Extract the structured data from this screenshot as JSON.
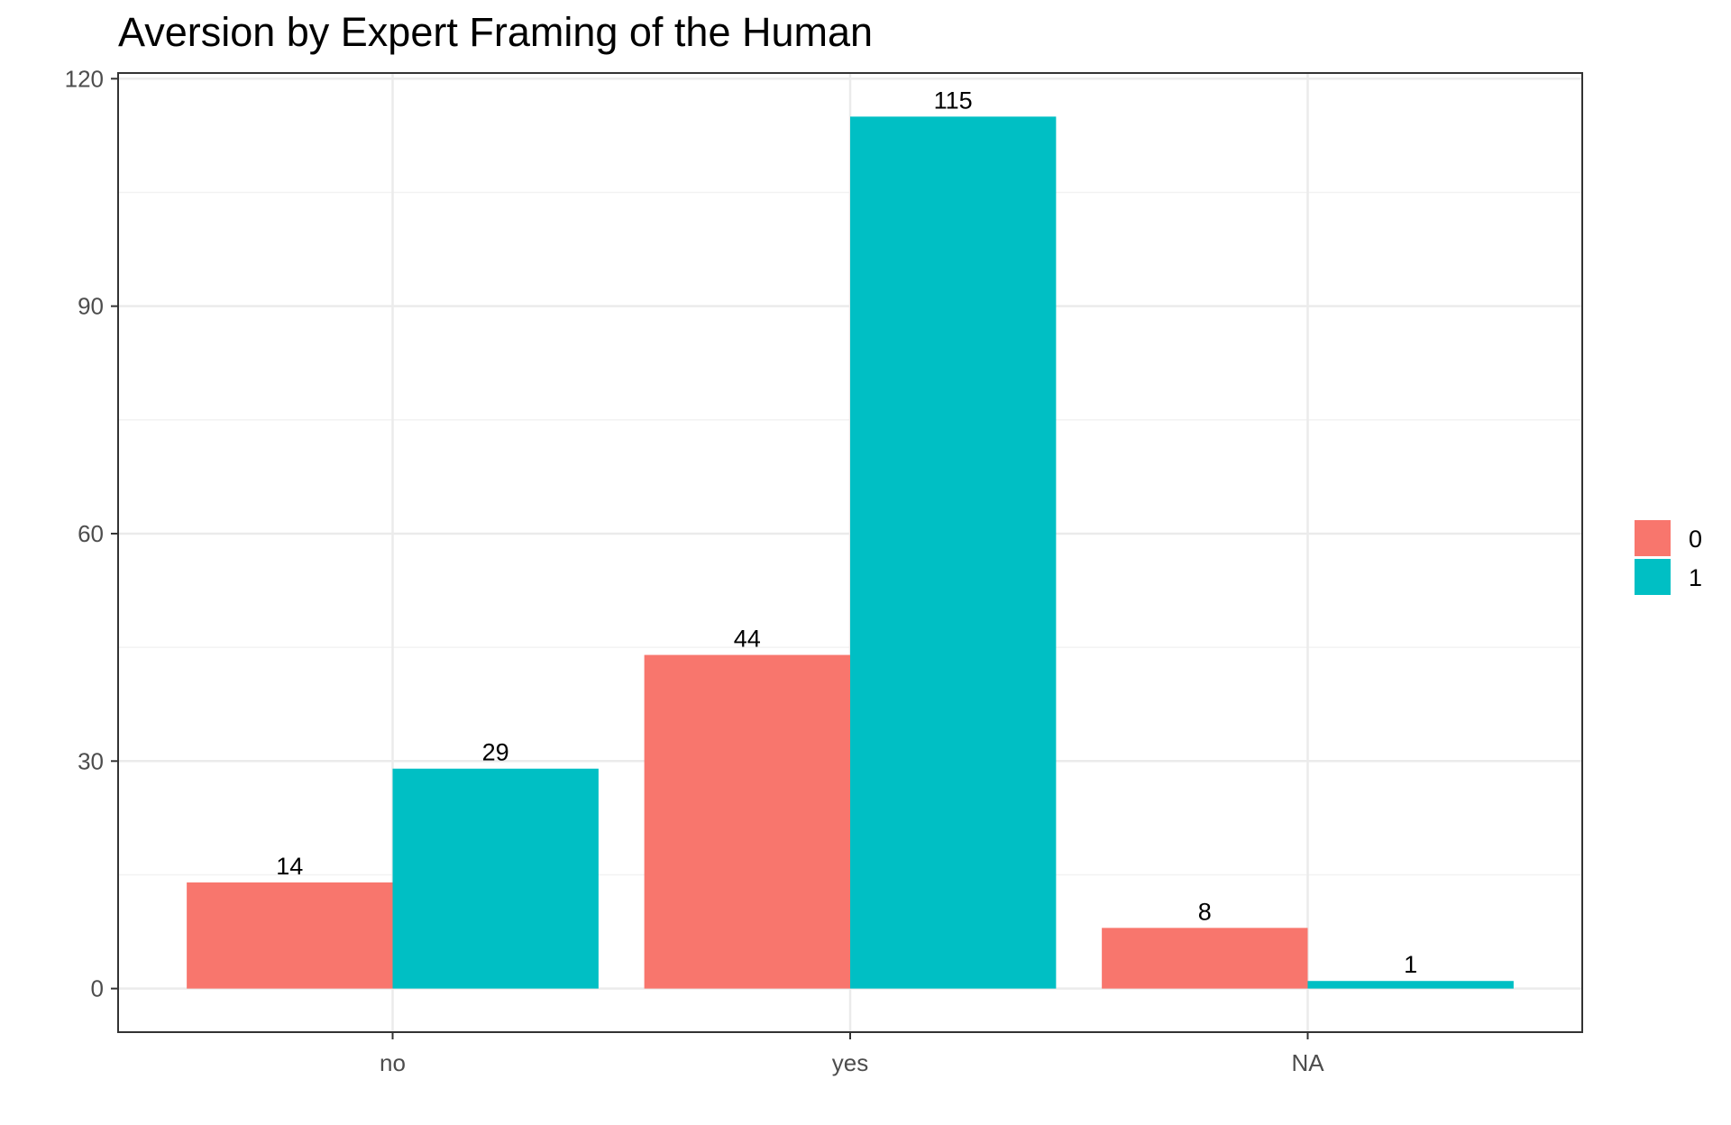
{
  "chart_data": {
    "type": "bar",
    "title": "Aversion by Expert Framing of the Human",
    "xlabel": "",
    "ylabel": "",
    "categories": [
      "no",
      "yes",
      "NA"
    ],
    "series": [
      {
        "name": "0",
        "color": "#F8766D",
        "values": [
          14,
          44,
          8
        ]
      },
      {
        "name": "1",
        "color": "#00BFC4",
        "values": [
          29,
          115,
          1
        ]
      }
    ],
    "ylim": [
      -5.75,
      120.75
    ],
    "y_ticks": [
      0,
      30,
      60,
      90,
      120
    ],
    "y_tick_labels": [
      "0",
      "30",
      "60",
      "90",
      "120"
    ],
    "data_labels": [
      [
        "14",
        "44",
        "8"
      ],
      [
        "29",
        "115",
        "1"
      ]
    ],
    "grid": true,
    "legend_position": "right",
    "legend_items": [
      "0",
      "1"
    ]
  }
}
